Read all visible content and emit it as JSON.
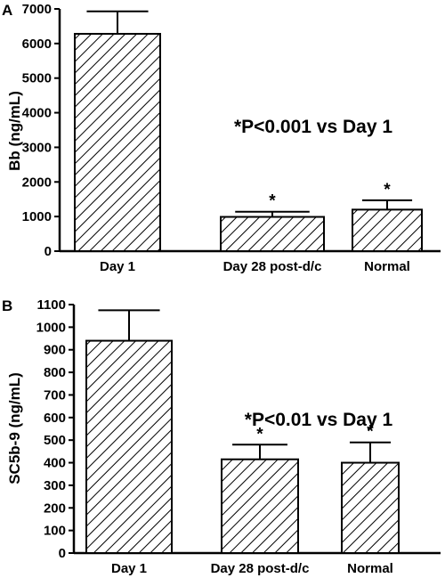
{
  "chart_data": [
    {
      "type": "bar",
      "panel_label": "A",
      "ylabel": "Bb (ng/mL)",
      "xlabel": "",
      "categories": [
        "Day 1",
        "Day 28 post-d/c",
        "Normal"
      ],
      "values": [
        6280,
        990,
        1200
      ],
      "errors": [
        650,
        150,
        270
      ],
      "significance": [
        "",
        "*",
        "*"
      ],
      "annotation": "*P<0.001 vs Day 1",
      "ylim": [
        0,
        7000
      ],
      "yticks": [
        0,
        1000,
        2000,
        3000,
        4000,
        5000,
        6000,
        7000
      ],
      "grid": false,
      "bar_fill": "diagonal-hatch"
    },
    {
      "type": "bar",
      "panel_label": "B",
      "ylabel": "SC5b-9 (ng/mL)",
      "xlabel": "",
      "categories": [
        "Day 1",
        "Day 28 post-d/c",
        "Normal"
      ],
      "values": [
        940,
        415,
        400
      ],
      "errors": [
        135,
        65,
        90
      ],
      "significance": [
        "",
        "*",
        "*"
      ],
      "annotation": "*P<0.01 vs Day 1",
      "ylim": [
        0,
        1100
      ],
      "yticks": [
        0,
        100,
        200,
        300,
        400,
        500,
        600,
        700,
        800,
        900,
        1000,
        1100
      ],
      "grid": false,
      "bar_fill": "diagonal-hatch"
    }
  ]
}
